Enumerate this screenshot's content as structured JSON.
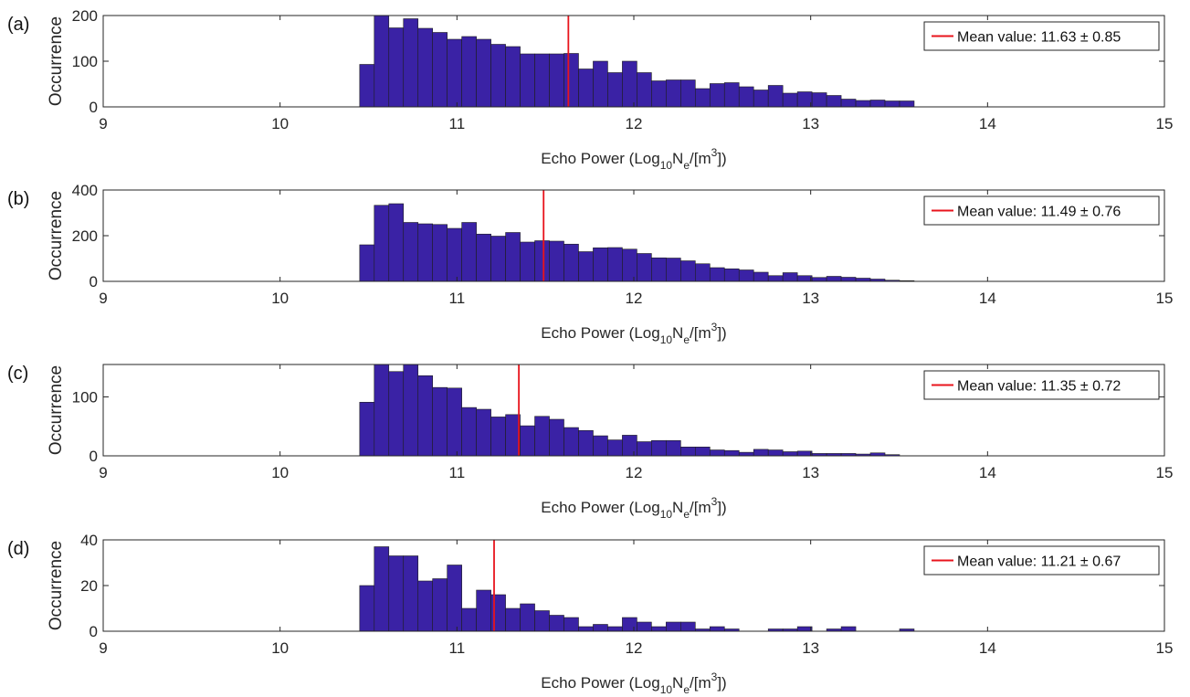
{
  "chart_data": [
    {
      "type": "bar",
      "panel_label": "(a)",
      "xlabel_parts": [
        "Echo Power (Log",
        "10",
        "N",
        "e",
        "/[m",
        "3",
        "])"
      ],
      "ylabel": "Occurrence",
      "xlim": [
        9,
        15
      ],
      "ylim": [
        0,
        200
      ],
      "xticks": [
        "9",
        "10",
        "11",
        "12",
        "13",
        "14",
        "15"
      ],
      "yticks": [
        "0",
        "100",
        "200"
      ],
      "ytick_values": [
        0,
        100,
        200
      ],
      "bin_start": 10.45,
      "bin_width": 0.0825,
      "bar_color": "#3a22a5",
      "values": [
        93,
        200,
        173,
        193,
        172,
        163,
        148,
        154,
        148,
        137,
        132,
        116,
        116,
        116,
        117,
        83,
        100,
        75,
        100,
        75,
        57,
        59,
        59,
        40,
        51,
        53,
        44,
        37,
        47,
        30,
        33,
        31,
        25,
        17,
        14,
        15,
        13,
        13
      ],
      "mean_line": 11.63,
      "legend": {
        "label": "Mean value: 11.63 ± 0.85",
        "position": "top-right",
        "line_color": "#e8141c"
      }
    },
    {
      "type": "bar",
      "panel_label": "(b)",
      "xlabel_parts": [
        "Echo Power (Log",
        "10",
        "N",
        "e",
        "/[m",
        "3",
        "])"
      ],
      "ylabel": "Occurrence",
      "xlim": [
        9,
        15
      ],
      "ylim": [
        0,
        400
      ],
      "xticks": [
        "9",
        "10",
        "11",
        "12",
        "13",
        "14",
        "15"
      ],
      "yticks": [
        "0",
        "200",
        "400"
      ],
      "ytick_values": [
        0,
        200,
        400
      ],
      "bin_start": 10.45,
      "bin_width": 0.0825,
      "bar_color": "#3a22a5",
      "values": [
        160,
        333,
        340,
        258,
        252,
        249,
        232,
        258,
        207,
        198,
        214,
        172,
        178,
        176,
        163,
        130,
        147,
        148,
        141,
        122,
        103,
        102,
        90,
        77,
        60,
        55,
        50,
        40,
        25,
        38,
        25,
        17,
        22,
        18,
        14,
        10,
        5,
        3
      ],
      "mean_line": 11.49,
      "legend": {
        "label": "Mean value: 11.49 ± 0.76",
        "position": "top-right",
        "line_color": "#e8141c"
      }
    },
    {
      "type": "bar",
      "panel_label": "(c)",
      "xlabel_parts": [
        "Echo Power (Log",
        "10",
        "N",
        "e",
        "/[m",
        "3",
        "])"
      ],
      "ylabel": "Occurrence",
      "xlim": [
        9,
        15
      ],
      "ylim": [
        0,
        155
      ],
      "xticks": [
        "9",
        "10",
        "11",
        "12",
        "13",
        "14",
        "15"
      ],
      "yticks": [
        "0",
        "100"
      ],
      "ytick_values": [
        0,
        100
      ],
      "bin_start": 10.45,
      "bin_width": 0.0825,
      "bar_color": "#3a22a5",
      "values": [
        91,
        155,
        143,
        155,
        136,
        116,
        115,
        82,
        79,
        66,
        70,
        51,
        67,
        62,
        48,
        43,
        34,
        27,
        35,
        24,
        26,
        26,
        15,
        15,
        10,
        9,
        6,
        11,
        10,
        7,
        8,
        4,
        4,
        4,
        3,
        5,
        2
      ],
      "mean_line": 11.35,
      "legend": {
        "label": "Mean value: 11.35 ± 0.72",
        "position": "top-right",
        "line_color": "#e8141c"
      }
    },
    {
      "type": "bar",
      "panel_label": "(d)",
      "xlabel_parts": [
        "Echo Power (Log",
        "10",
        "N",
        "e",
        "/[m",
        "3",
        "])"
      ],
      "ylabel": "Occurrence",
      "xlim": [
        9,
        15
      ],
      "ylim": [
        0,
        40
      ],
      "xticks": [
        "9",
        "10",
        "11",
        "12",
        "13",
        "14",
        "15"
      ],
      "yticks": [
        "0",
        "20",
        "40"
      ],
      "ytick_values": [
        0,
        20,
        40
      ],
      "bin_start": 10.45,
      "bin_width": 0.0825,
      "bar_color": "#3a22a5",
      "values": [
        20,
        37,
        33,
        33,
        22,
        23,
        29,
        10,
        18,
        16,
        10,
        12,
        9,
        7,
        6,
        2,
        3,
        2,
        6,
        4,
        2,
        4,
        4,
        1,
        2,
        1,
        0,
        0,
        1,
        1,
        2,
        0,
        1,
        2,
        0,
        0,
        0,
        1
      ],
      "mean_line": 11.21,
      "legend": {
        "label": "Mean value: 11.21 ± 0.67",
        "position": "top-right",
        "line_color": "#e8141c"
      }
    }
  ]
}
